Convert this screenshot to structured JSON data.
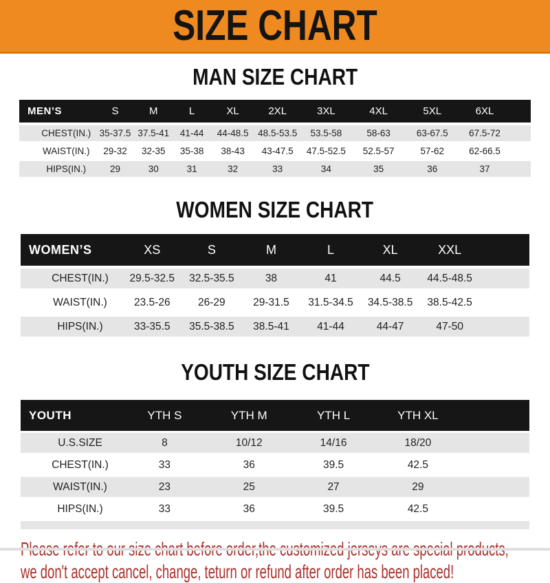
{
  "banner": {
    "title": "SIZE CHART"
  },
  "men": {
    "heading": "MAN SIZE CHART",
    "corner": "MEN’S",
    "cols": [
      "S",
      "M",
      "L",
      "XL",
      "2XL",
      "3XL",
      "4XL",
      "5XL",
      "6XL"
    ],
    "rows": [
      {
        "label": "CHEST(IN.)",
        "values": [
          "35-37.5",
          "37.5-41",
          "41-44",
          "44-48.5",
          "48.5-53.5",
          "53.5-58",
          "58-63",
          "63-67.5",
          "67.5-72"
        ]
      },
      {
        "label": "WAIST(IN.)",
        "values": [
          "29-32",
          "32-35",
          "35-38",
          "38-43",
          "43-47.5",
          "47.5-52.5",
          "52.5-57",
          "57-62",
          "62-66.5"
        ]
      },
      {
        "label": "HIPS(IN.)",
        "values": [
          "29",
          "30",
          "31",
          "32",
          "33",
          "34",
          "35",
          "36",
          "37"
        ]
      }
    ]
  },
  "women": {
    "heading": "WOMEN SIZE CHART",
    "corner": "WOMEN’S",
    "cols": [
      "XS",
      "S",
      "M",
      "L",
      "XL",
      "XXL"
    ],
    "rows": [
      {
        "label": "CHEST(IN.)",
        "values": [
          "29.5-32.5",
          "32.5-35.5",
          "38",
          "41",
          "44.5",
          "44.5-48.5"
        ]
      },
      {
        "label": "WAIST(IN.)",
        "values": [
          "23.5-26",
          "26-29",
          "29-31.5",
          "31.5-34.5",
          "34.5-38.5",
          "38.5-42.5"
        ]
      },
      {
        "label": "HIPS(IN.)",
        "values": [
          "33-35.5",
          "35.5-38.5",
          "38.5-41",
          "41-44",
          "44-47",
          "47-50"
        ]
      }
    ]
  },
  "youth": {
    "heading": "YOUTH SIZE CHART",
    "corner": "YOUTH",
    "cols": [
      "YTH S",
      "YTH M",
      "YTH L",
      "YTH XL"
    ],
    "rows": [
      {
        "label": "U.S.SIZE",
        "values": [
          "8",
          "10/12",
          "14/16",
          "18/20"
        ]
      },
      {
        "label": "CHEST(IN.)",
        "values": [
          "33",
          "36",
          "39.5",
          "42.5"
        ]
      },
      {
        "label": "WAIST(IN.)",
        "values": [
          "23",
          "25",
          "27",
          "29"
        ]
      },
      {
        "label": "HIPS(IN.)",
        "values": [
          "33",
          "36",
          "39.5",
          "42.5"
        ]
      }
    ]
  },
  "footer": {
    "line1": "Please refer to our size chart before order,the customized jerseys are special products,",
    "line2": "we don't accept cancel, change, teturn or refund after order has been placed!"
  },
  "colors": {
    "banner_orange": "#ee8a1f",
    "header_bar_black": "#161616",
    "stripe_gray": "#e5e5e5",
    "footer_red": "#a9302c"
  }
}
